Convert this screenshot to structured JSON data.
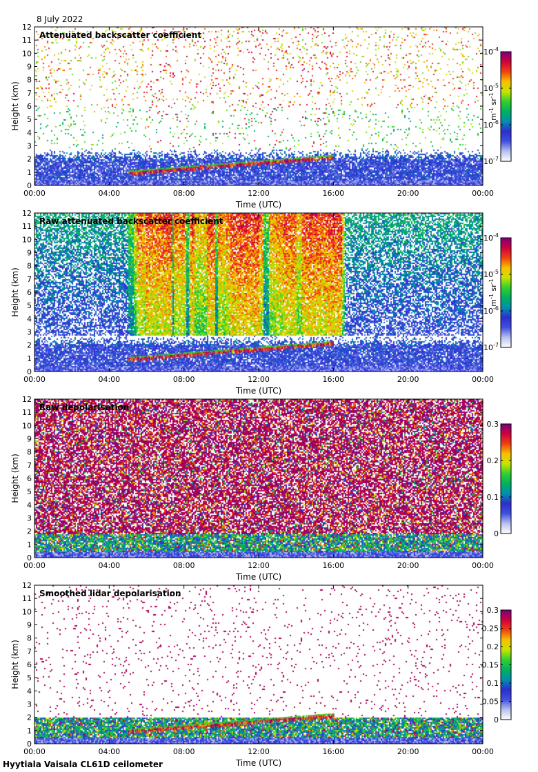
{
  "header": {
    "date": "8 July 2022",
    "footer": "Hyytiala Vaisala CL61D ceilometer"
  },
  "colors": {
    "scale_stops": [
      "#ffffff",
      "#b8c0f0",
      "#4050e0",
      "#2e2ecf",
      "#008fb0",
      "#00b060",
      "#30d030",
      "#c8e400",
      "#f8c000",
      "#f04010",
      "#d00040",
      "#7a007a"
    ]
  },
  "chart_data": [
    {
      "type": "heatmap",
      "title": "Attenuated backscatter coefficient",
      "xlabel": "Time (UTC)",
      "ylabel": "Height (km)",
      "xlim": [
        0,
        24
      ],
      "ylim": [
        0,
        12
      ],
      "x_ticks": [
        "00:00",
        "04:00",
        "08:00",
        "12:00",
        "16:00",
        "20:00",
        "00:00"
      ],
      "y_ticks": [
        "0",
        "1",
        "2",
        "3",
        "4",
        "5",
        "6",
        "7",
        "8",
        "9",
        "10",
        "11",
        "12"
      ],
      "colorbar": {
        "label_main": "m",
        "label_exp1": "-1",
        "label_mid": " sr",
        "label_exp2": "-1",
        "scale": "log",
        "ticks": [
          {
            "base": "10",
            "exp": "-4",
            "level": 1.0
          },
          {
            "base": "10",
            "exp": "-5",
            "level": 0.6667
          },
          {
            "base": "10",
            "exp": "-6",
            "level": 0.3333
          },
          {
            "base": "10",
            "exp": "-7",
            "level": 0.0
          }
        ]
      },
      "features": {
        "boundary_layer_top_km": 2.0,
        "cloud_layer": {
          "start_h": 5.0,
          "end_h": 16.0,
          "base_km_start": 0.8,
          "base_km_end": 2.0
        },
        "upper_noise_density": 0.25,
        "vertical_streaks": false
      }
    },
    {
      "type": "heatmap",
      "title": "Raw attenuated backscatter coefficient",
      "xlabel": "Time (UTC)",
      "ylabel": "Height (km)",
      "xlim": [
        0,
        24
      ],
      "ylim": [
        0,
        12
      ],
      "x_ticks": [
        "00:00",
        "04:00",
        "08:00",
        "12:00",
        "16:00",
        "20:00",
        "00:00"
      ],
      "y_ticks": [
        "0",
        "1",
        "2",
        "3",
        "4",
        "5",
        "6",
        "7",
        "8",
        "9",
        "10",
        "11",
        "12"
      ],
      "colorbar": {
        "label_main": "m",
        "label_exp1": "-1",
        "label_mid": " sr",
        "label_exp2": "-1",
        "scale": "log",
        "ticks": [
          {
            "base": "10",
            "exp": "-4",
            "level": 1.0
          },
          {
            "base": "10",
            "exp": "-5",
            "level": 0.6667
          },
          {
            "base": "10",
            "exp": "-6",
            "level": 0.3333
          },
          {
            "base": "10",
            "exp": "-7",
            "level": 0.0
          }
        ]
      },
      "features": {
        "boundary_layer_top_km": 2.0,
        "cloud_layer": {
          "start_h": 5.0,
          "end_h": 16.0,
          "base_km_start": 0.8,
          "base_km_end": 2.0
        },
        "upper_noise_density": 1.0,
        "vertical_streaks": true
      }
    },
    {
      "type": "heatmap",
      "title": "Raw depolarisation",
      "xlabel": "Time (UTC)",
      "ylabel": "Height (km)",
      "xlim": [
        0,
        24
      ],
      "ylim": [
        0,
        12
      ],
      "x_ticks": [
        "00:00",
        "04:00",
        "08:00",
        "12:00",
        "16:00",
        "20:00",
        "00:00"
      ],
      "y_ticks": [
        "0",
        "1",
        "2",
        "3",
        "4",
        "5",
        "6",
        "7",
        "8",
        "9",
        "10",
        "11",
        "12"
      ],
      "colorbar": {
        "label_main": "",
        "label_exp1": "",
        "label_mid": "",
        "label_exp2": "",
        "scale": "linear",
        "ticks": [
          {
            "base": "0.3",
            "exp": "",
            "level": 1.0
          },
          {
            "base": "0.2",
            "exp": "",
            "level": 0.6667
          },
          {
            "base": "0.1",
            "exp": "",
            "level": 0.3333
          },
          {
            "base": "0",
            "exp": "",
            "level": 0.0
          }
        ]
      },
      "features": {
        "boundary_layer_top_km": 1.8,
        "cloud_layer": null,
        "upper_noise_density": 1.0,
        "vertical_streaks": false
      }
    },
    {
      "type": "heatmap",
      "title": "Smoothed lidar depolarisation",
      "xlabel": "Time (UTC)",
      "ylabel": "Height (km)",
      "xlim": [
        0,
        24
      ],
      "ylim": [
        0,
        12
      ],
      "x_ticks": [
        "00:00",
        "04:00",
        "08:00",
        "12:00",
        "16:00",
        "20:00",
        "00:00"
      ],
      "y_ticks": [
        "0",
        "1",
        "2",
        "3",
        "4",
        "5",
        "6",
        "7",
        "8",
        "9",
        "10",
        "11",
        "12"
      ],
      "colorbar": {
        "label_main": "",
        "label_exp1": "",
        "label_mid": "",
        "label_exp2": "",
        "scale": "linear",
        "ticks": [
          {
            "base": "0.3",
            "exp": "",
            "level": 1.0
          },
          {
            "base": "0.25",
            "exp": "",
            "level": 0.8333
          },
          {
            "base": "0.2",
            "exp": "",
            "level": 0.6667
          },
          {
            "base": "0.15",
            "exp": "",
            "level": 0.5
          },
          {
            "base": "0.1",
            "exp": "",
            "level": 0.3333
          },
          {
            "base": "0.05",
            "exp": "",
            "level": 0.1667
          },
          {
            "base": "0",
            "exp": "",
            "level": 0.0
          }
        ]
      },
      "features": {
        "boundary_layer_top_km": 2.0,
        "cloud_layer": {
          "start_h": 5.0,
          "end_h": 16.0,
          "base_km_start": 0.8,
          "base_km_end": 2.0
        },
        "upper_noise_density": 0.12,
        "vertical_streaks": false
      }
    }
  ]
}
